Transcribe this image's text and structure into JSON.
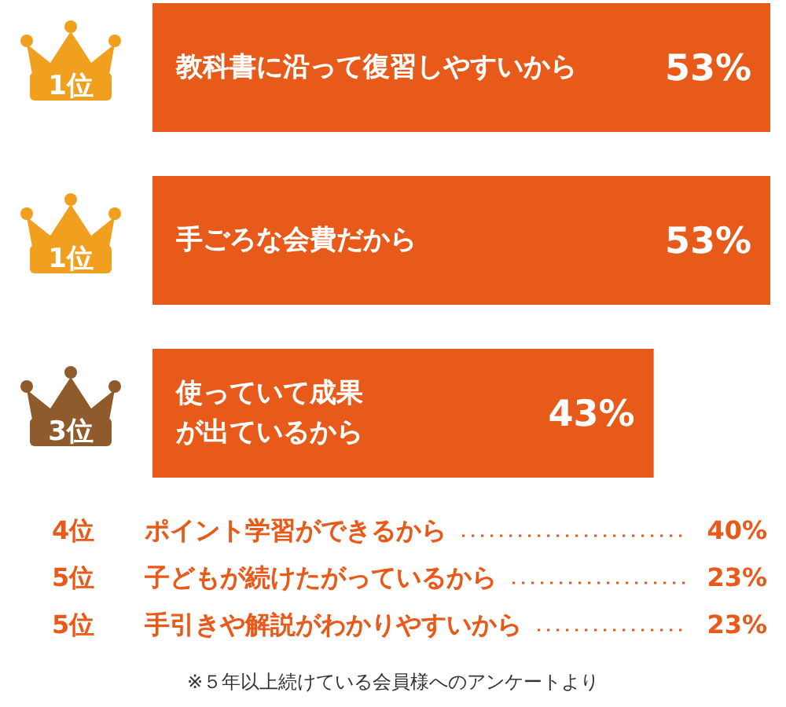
{
  "chart_data": [
    {
      "type": "bar",
      "orientation": "horizontal",
      "color": "#e85a19",
      "categories": [
        "教科書に沿って復習しやすいから",
        "手ごろな会費だから",
        "使っていて成果が出ているから"
      ],
      "values": [
        53,
        53,
        43
      ],
      "value_labels": [
        "53%",
        "53%",
        "43%"
      ],
      "annotations": [
        "1位",
        "1位",
        "3位"
      ]
    },
    {
      "type": "other",
      "color": "#e85a19",
      "categories": [
        "ポイント学習ができるから",
        "子どもが続けたがっているから",
        "手引きや解説がわかりやすいから"
      ],
      "values": [
        40,
        23,
        23
      ],
      "value_labels": [
        "40%",
        "23%",
        "23%"
      ],
      "annotations": [
        "4位",
        "5位",
        "5位",
        "※５年以上続けている会員様へのアンケートより"
      ]
    }
  ]
}
